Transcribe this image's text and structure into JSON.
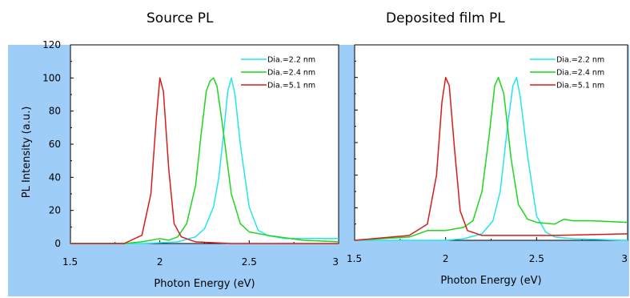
{
  "titles": {
    "left": "Source PL",
    "right": "Deposited film PL"
  },
  "colors": {
    "background_panel": "#9ecdf8",
    "plot_area": "#ffffff",
    "dia_2_2": "#22e6ea",
    "dia_2_4": "#1fd61f",
    "dia_5_1": "#d81b1b"
  },
  "chart_data": [
    {
      "type": "line",
      "title": "Source PL",
      "xlabel": "Photon Energy (eV)",
      "ylabel": "PL Intensity (a.u.)",
      "xlim": [
        1.5,
        3
      ],
      "ylim": [
        0,
        120
      ],
      "xticks": [
        1.5,
        2,
        2.5,
        3
      ],
      "xtick_labels": [
        "1.5",
        "2",
        "2.5",
        "3"
      ],
      "yticks": [
        0,
        20,
        40,
        60,
        80,
        100,
        120
      ],
      "ytick_labels": [
        "0",
        "20",
        "40",
        "60",
        "80",
        "100",
        "120"
      ],
      "legend_position": "top-right",
      "series": [
        {
          "name": "Dia.=2.2 nm",
          "color": "#22e6ea",
          "x": [
            1.5,
            1.9,
            2.0,
            2.1,
            2.2,
            2.25,
            2.3,
            2.33,
            2.36,
            2.38,
            2.4,
            2.42,
            2.45,
            2.5,
            2.55,
            2.6,
            2.7,
            2.8,
            3.0
          ],
          "y": [
            0,
            0,
            0.5,
            1,
            4,
            9,
            22,
            40,
            70,
            92,
            100,
            90,
            60,
            22,
            8,
            5,
            3,
            3,
            3
          ]
        },
        {
          "name": "Dia.=2.4 nm",
          "color": "#1fd61f",
          "x": [
            1.5,
            1.8,
            1.9,
            1.95,
            2.0,
            2.05,
            2.1,
            2.15,
            2.2,
            2.23,
            2.26,
            2.28,
            2.3,
            2.32,
            2.35,
            2.4,
            2.45,
            2.5,
            2.6,
            2.8,
            3.0
          ],
          "y": [
            0,
            0,
            1,
            2,
            3,
            2,
            4,
            12,
            35,
            65,
            92,
            98,
            100,
            95,
            72,
            30,
            12,
            7,
            5,
            2,
            1
          ]
        },
        {
          "name": "Dia.=5.1 nm",
          "color": "#d81b1b",
          "x": [
            1.5,
            1.8,
            1.9,
            1.95,
            1.98,
            2.0,
            2.02,
            2.05,
            2.08,
            2.12,
            2.2,
            2.4,
            3.0
          ],
          "y": [
            0,
            0,
            5,
            30,
            75,
            100,
            92,
            45,
            12,
            4,
            1,
            0,
            0
          ]
        }
      ]
    },
    {
      "type": "line",
      "title": "Deposited film PL",
      "xlabel": "Photon Energy (eV)",
      "ylabel": "",
      "xlim": [
        1.5,
        3
      ],
      "ylim": [
        0,
        120
      ],
      "xticks": [
        1.5,
        2,
        2.5,
        3
      ],
      "xtick_labels": [
        "1.5",
        "2",
        "2.5",
        "3"
      ],
      "yticks": [
        0,
        20,
        40,
        60,
        80,
        100,
        120
      ],
      "ytick_labels": [],
      "legend_position": "top-right",
      "series": [
        {
          "name": "Dia.=2.2 nm",
          "color": "#22e6ea",
          "x": [
            1.5,
            2.0,
            2.1,
            2.2,
            2.26,
            2.3,
            2.34,
            2.37,
            2.39,
            2.41,
            2.45,
            2.5,
            2.55,
            2.6,
            2.7,
            3.0
          ],
          "y": [
            0,
            0,
            1,
            4,
            12,
            30,
            70,
            95,
            100,
            88,
            52,
            15,
            5,
            2,
            1,
            0
          ]
        },
        {
          "name": "Dia.=2.4 nm",
          "color": "#1fd61f",
          "x": [
            1.5,
            1.8,
            1.9,
            2.0,
            2.05,
            2.1,
            2.15,
            2.2,
            2.24,
            2.27,
            2.29,
            2.32,
            2.36,
            2.4,
            2.45,
            2.5,
            2.6,
            2.65,
            2.7,
            2.8,
            3.0
          ],
          "y": [
            0,
            2,
            6,
            6,
            7,
            8,
            12,
            30,
            65,
            95,
            100,
            90,
            50,
            22,
            13,
            11,
            10,
            13,
            12,
            12,
            11
          ]
        },
        {
          "name": "Dia.=5.1 nm",
          "color": "#d81b1b",
          "x": [
            1.5,
            1.8,
            1.9,
            1.95,
            1.98,
            2.0,
            2.02,
            2.05,
            2.08,
            2.12,
            2.2,
            2.4,
            2.6,
            3.0
          ],
          "y": [
            0,
            3,
            10,
            40,
            85,
            100,
            95,
            55,
            18,
            6,
            3,
            3,
            3,
            4
          ]
        }
      ]
    }
  ]
}
